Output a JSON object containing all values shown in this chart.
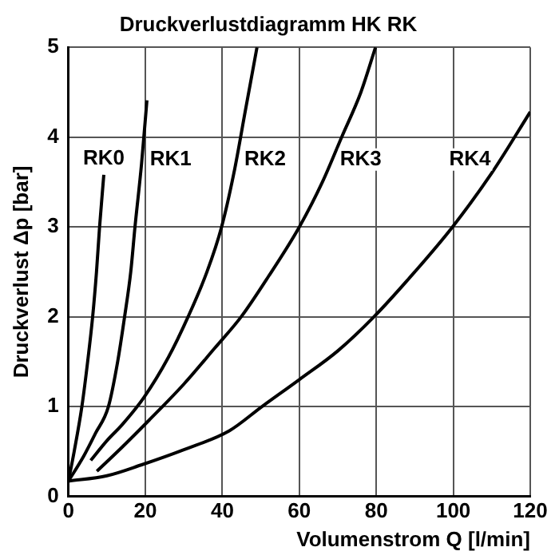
{
  "chart_data": {
    "type": "line",
    "title": "Druckverlustdiagramm HK RK",
    "xlabel": "Volumenstrom Q [l/min]",
    "ylabel": "Druckverlust Δp [bar]",
    "xlim": [
      0,
      120
    ],
    "ylim": [
      0,
      5
    ],
    "xticks": [
      0,
      20,
      40,
      60,
      80,
      100,
      120
    ],
    "yticks": [
      0,
      1,
      2,
      3,
      4,
      5
    ],
    "grid": true,
    "legend": false,
    "marker": "none",
    "line_style": "solid",
    "series": [
      {
        "name": "RK0",
        "color": "#000000",
        "x": [
          0,
          1.5,
          3.5,
          5,
          6.3,
          7.3,
          8.1,
          9.2
        ],
        "values": [
          0.17,
          0.5,
          1,
          1.5,
          2,
          2.5,
          3,
          3.58
        ]
      },
      {
        "name": "RK1",
        "color": "#000000",
        "x": [
          0,
          4,
          7,
          10.4,
          12.8,
          14.6,
          16.2,
          17.3,
          19,
          20.4
        ],
        "values": [
          0.17,
          0.45,
          0.7,
          1,
          1.5,
          2,
          2.5,
          3,
          3.7,
          4.41
        ]
      },
      {
        "name": "RK2",
        "color": "#000000",
        "x": [
          5.8,
          10,
          14,
          19.6,
          26,
          31.1,
          36,
          39.8,
          43,
          46,
          49
        ],
        "values": [
          0.4,
          0.62,
          0.8,
          1.1,
          1.55,
          2,
          2.5,
          3,
          3.6,
          4.3,
          5
        ]
      },
      {
        "name": "RK3",
        "color": "#000000",
        "x": [
          7.4,
          14,
          21,
          30,
          38,
          44.9,
          52,
          60,
          66,
          71,
          76,
          79.8
        ],
        "values": [
          0.28,
          0.55,
          0.85,
          1.25,
          1.65,
          2,
          2.45,
          3,
          3.5,
          4,
          4.5,
          5
        ]
      },
      {
        "name": "RK4",
        "color": "#000000",
        "x": [
          0,
          10,
          18.9,
          30,
          41.8,
          50.3,
          60,
          70,
          79.4,
          90,
          99.8,
          110,
          120
        ],
        "values": [
          0.17,
          0.23,
          0.35,
          0.52,
          0.73,
          1,
          1.3,
          1.62,
          2,
          2.5,
          3,
          3.6,
          4.28
        ]
      }
    ]
  }
}
